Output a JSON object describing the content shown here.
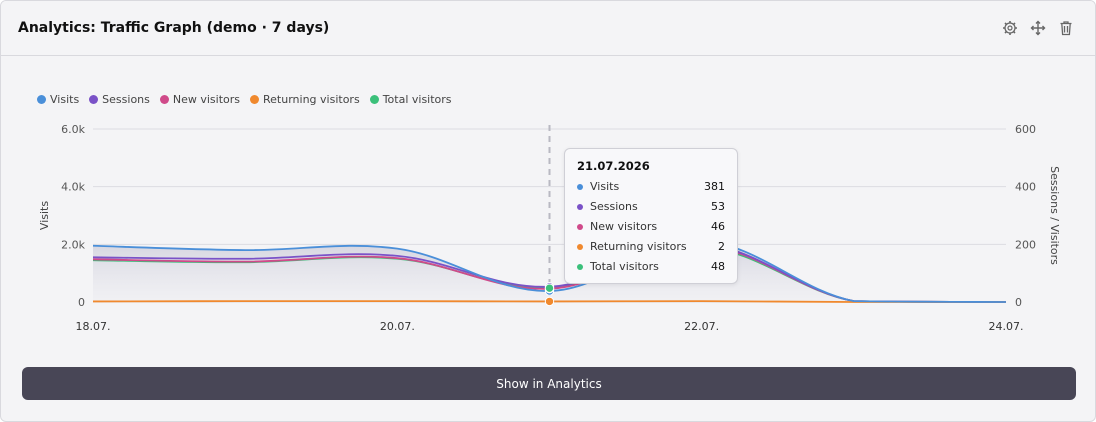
{
  "widget": {
    "title": "Analytics: Traffic Graph (demo · 7 days)",
    "icons": [
      "gear-icon",
      "move-icon",
      "trash-icon"
    ]
  },
  "legend": [
    {
      "label": "Visits",
      "color": "#4a8fd9"
    },
    {
      "label": "Sessions",
      "color": "#7a52c7"
    },
    {
      "label": "New visitors",
      "color": "#d04a8a"
    },
    {
      "label": "Returning visitors",
      "color": "#f0892e"
    },
    {
      "label": "Total visitors",
      "color": "#3bc07a"
    }
  ],
  "tooltip": {
    "date": "21.07.2026",
    "rows": [
      {
        "label": "Visits",
        "value": "381",
        "color": "#4a8fd9"
      },
      {
        "label": "Sessions",
        "value": "53",
        "color": "#7a52c7"
      },
      {
        "label": "New visitors",
        "value": "46",
        "color": "#d04a8a"
      },
      {
        "label": "Returning visitors",
        "value": "2",
        "color": "#f0892e"
      },
      {
        "label": "Total visitors",
        "value": "48",
        "color": "#3bc07a"
      }
    ]
  },
  "button": {
    "label": "Show in Analytics"
  },
  "chart_data": {
    "type": "area",
    "x": [
      "18.07.",
      "19.07.",
      "20.07.",
      "21.07.",
      "22.07.",
      "23.07.",
      "24.07."
    ],
    "x_tick_labels": [
      "18.07.",
      "20.07.",
      "22.07.",
      "24.07."
    ],
    "left_axis": {
      "label": "Visits",
      "ticks": [
        "0",
        "2.0k",
        "4.0k",
        "6.0k"
      ],
      "ylim": [
        0,
        6000
      ]
    },
    "right_axis": {
      "label": "Sessions / Visitors",
      "ticks": [
        "0",
        "200",
        "400",
        "600"
      ],
      "ylim": [
        0,
        600
      ]
    },
    "grid": true,
    "legend_position": "top-left",
    "highlight_x": "21.07.",
    "series": [
      {
        "name": "Visits",
        "axis": "left",
        "color": "#4a8fd9",
        "values": [
          1950,
          1800,
          1850,
          381,
          2100,
          30,
          0
        ]
      },
      {
        "name": "Sessions",
        "axis": "right",
        "color": "#7a52c7",
        "values": [
          155,
          150,
          160,
          53,
          200,
          3,
          0
        ]
      },
      {
        "name": "New visitors",
        "axis": "right",
        "color": "#d04a8a",
        "values": [
          148,
          140,
          152,
          46,
          195,
          3,
          0
        ]
      },
      {
        "name": "Returning visitors",
        "axis": "right",
        "color": "#f0892e",
        "values": [
          2,
          3,
          3,
          2,
          3,
          0,
          0
        ]
      },
      {
        "name": "Total visitors",
        "axis": "right",
        "color": "#3bc07a",
        "values": [
          145,
          138,
          150,
          48,
          190,
          3,
          0
        ]
      }
    ]
  }
}
